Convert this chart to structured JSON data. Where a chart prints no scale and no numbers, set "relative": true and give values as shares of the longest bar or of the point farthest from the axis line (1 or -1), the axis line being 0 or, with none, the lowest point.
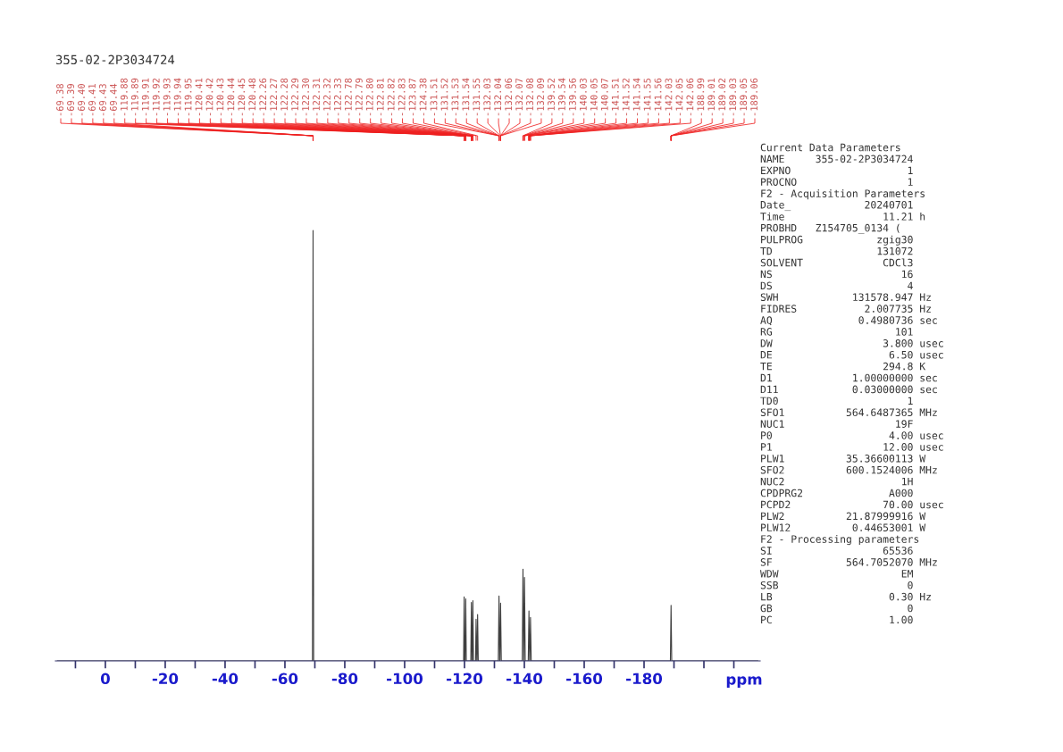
{
  "chart_data": {
    "type": "line",
    "title": "355-02-2P3034724",
    "xlabel": "ppm",
    "relative": true,
    "grid": false,
    "legend": false,
    "marker": "none",
    "line_style": "solid",
    "xlim": [
      16.7,
      -218.8
    ],
    "xticks": [
      {
        "value": 10,
        "label": null
      },
      0,
      {
        "value": -10,
        "label": null
      },
      -20,
      {
        "value": -30,
        "label": null
      },
      -40,
      {
        "value": -50,
        "label": null
      },
      -60,
      {
        "value": -70,
        "label": null
      },
      -80,
      {
        "value": -90,
        "label": null
      },
      -100,
      {
        "value": -110,
        "label": null
      },
      -120,
      {
        "value": -130,
        "label": null
      },
      -140,
      {
        "value": -150,
        "label": null
      },
      -160,
      {
        "value": -170,
        "label": null
      },
      -180,
      {
        "value": -190,
        "label": null
      },
      {
        "value": -200,
        "label": null
      },
      {
        "value": -210,
        "label": null
      }
    ],
    "series": [
      {
        "color": "#404040",
        "x": [
          16,
          -69.2,
          -69.4,
          -69.6,
          -119.7,
          -119.88,
          -120.0,
          -120.2,
          -120.42,
          -120.6,
          -122.1,
          -122.3,
          -122.5,
          -122.6,
          -122.8,
          -123.0,
          -123.7,
          -123.87,
          -124.1,
          -124.2,
          -124.38,
          -124.6,
          -131.3,
          -131.53,
          -131.75,
          -131.85,
          -132.06,
          -132.3,
          -139.3,
          -139.54,
          -139.8,
          -139.85,
          -140.05,
          -140.3,
          -141.3,
          -141.54,
          -141.75,
          -141.85,
          -142.05,
          -142.3,
          -188.8,
          -189.02,
          -189.25,
          -218
        ],
        "values": [
          0,
          0,
          1.0,
          0,
          0,
          0.149,
          0,
          0,
          0.144,
          0,
          0,
          0.136,
          0,
          0,
          0.14,
          0,
          0,
          0.097,
          0,
          0,
          0.108,
          0,
          0,
          0.151,
          0,
          0,
          0.134,
          0,
          0,
          0.213,
          0,
          0,
          0.194,
          0,
          0,
          0.116,
          0,
          0,
          0.101,
          0,
          0,
          0.129,
          0,
          0
        ]
      }
    ],
    "annotations": [
      {
        "text": "-69.38",
        "x": -69.38
      },
      {
        "text": "-69.39",
        "x": -69.39
      },
      {
        "text": "-69.40",
        "x": -69.4
      },
      {
        "text": "-69.41",
        "x": -69.41
      },
      {
        "text": "-69.43",
        "x": -69.43
      },
      {
        "text": "-69.44",
        "x": -69.44
      },
      {
        "text": "-119.88",
        "x": -119.88
      },
      {
        "text": "-119.89",
        "x": -119.89
      },
      {
        "text": "-119.91",
        "x": -119.91
      },
      {
        "text": "-119.92",
        "x": -119.92
      },
      {
        "text": "-119.93",
        "x": -119.93
      },
      {
        "text": "-119.94",
        "x": -119.94
      },
      {
        "text": "-119.95",
        "x": -119.95
      },
      {
        "text": "-120.41",
        "x": -120.41
      },
      {
        "text": "-120.42",
        "x": -120.42
      },
      {
        "text": "-120.43",
        "x": -120.43
      },
      {
        "text": "-120.44",
        "x": -120.44
      },
      {
        "text": "-120.45",
        "x": -120.45
      },
      {
        "text": "-120.48",
        "x": -120.48
      },
      {
        "text": "-122.26",
        "x": -122.26
      },
      {
        "text": "-122.27",
        "x": -122.27
      },
      {
        "text": "-122.28",
        "x": -122.28
      },
      {
        "text": "-122.29",
        "x": -122.29
      },
      {
        "text": "-122.30",
        "x": -122.3
      },
      {
        "text": "-122.31",
        "x": -122.31
      },
      {
        "text": "-122.32",
        "x": -122.32
      },
      {
        "text": "-122.33",
        "x": -122.33
      },
      {
        "text": "-122.78",
        "x": -122.78
      },
      {
        "text": "-122.79",
        "x": -122.79
      },
      {
        "text": "-122.80",
        "x": -122.8
      },
      {
        "text": "-122.81",
        "x": -122.81
      },
      {
        "text": "-122.82",
        "x": -122.82
      },
      {
        "text": "-122.83",
        "x": -122.83
      },
      {
        "text": "-123.87",
        "x": -123.87
      },
      {
        "text": "-124.38",
        "x": -124.38
      },
      {
        "text": "-131.51",
        "x": -131.51
      },
      {
        "text": "-131.52",
        "x": -131.52
      },
      {
        "text": "-131.53",
        "x": -131.53
      },
      {
        "text": "-131.54",
        "x": -131.54
      },
      {
        "text": "-131.55",
        "x": -131.55
      },
      {
        "text": "-132.03",
        "x": -132.03
      },
      {
        "text": "-132.04",
        "x": -132.04
      },
      {
        "text": "-132.06",
        "x": -132.06
      },
      {
        "text": "-132.07",
        "x": -132.07
      },
      {
        "text": "-132.08",
        "x": -132.08
      },
      {
        "text": "-132.09",
        "x": -132.09
      },
      {
        "text": "-139.52",
        "x": -139.52
      },
      {
        "text": "-139.54",
        "x": -139.54
      },
      {
        "text": "-139.56",
        "x": -139.56
      },
      {
        "text": "-140.03",
        "x": -140.03
      },
      {
        "text": "-140.05",
        "x": -140.05
      },
      {
        "text": "-140.07",
        "x": -140.07
      },
      {
        "text": "-141.51",
        "x": -141.51
      },
      {
        "text": "-141.52",
        "x": -141.52
      },
      {
        "text": "-141.54",
        "x": -141.54
      },
      {
        "text": "-141.55",
        "x": -141.55
      },
      {
        "text": "-141.56",
        "x": -141.56
      },
      {
        "text": "-142.03",
        "x": -142.03
      },
      {
        "text": "-142.05",
        "x": -142.05
      },
      {
        "text": "-142.06",
        "x": -142.06
      },
      {
        "text": "-188.99",
        "x": -188.99
      },
      {
        "text": "-189.01",
        "x": -189.01
      },
      {
        "text": "-189.02",
        "x": -189.02
      },
      {
        "text": "-189.03",
        "x": -189.03
      },
      {
        "text": "-189.05",
        "x": -189.05
      },
      {
        "text": "-189.06",
        "x": -189.06
      },
      "Current Data Parameters",
      "NAME     355-02-2P3034724",
      "EXPNO                   1",
      "PROCNO                  1",
      "F2 - Acquisition Parameters",
      "Date_            20240701",
      "Time                11.21 h",
      "PROBHD   Z154705_0134 (",
      "PULPROG            zgig30",
      "TD                 131072",
      "SOLVENT             CDCl3",
      "NS                     16",
      "DS                      4",
      "SWH            131578.947 Hz",
      "FIDRES           2.007735 Hz",
      "AQ              0.4980736 sec",
      "RG                    101",
      "DW                  3.800 usec",
      "DE                   6.50 usec",
      "TE                  294.8 K",
      "D1             1.00000000 sec",
      "D11            0.03000000 sec",
      "TD0                     1",
      "SFO1          564.6487365 MHz",
      "NUC1                  19F",
      "P0                   4.00 usec",
      "P1                  12.00 usec",
      "PLW1          35.36600113 W",
      "SFO2          600.1524006 MHz",
      "NUC2                   1H",
      "CPDPRG2              A000",
      "PCPD2               70.00 usec",
      "PLW2          21.87999916 W",
      "PLW12          0.44653001 W",
      "F2 - Processing parameters",
      "SI                  65536",
      "SF            564.7052070 MHz",
      "WDW                    EM",
      "SSB                     0",
      "LB                   0.30 Hz",
      "GB                      0",
      "PC                   1.00"
    ]
  }
}
